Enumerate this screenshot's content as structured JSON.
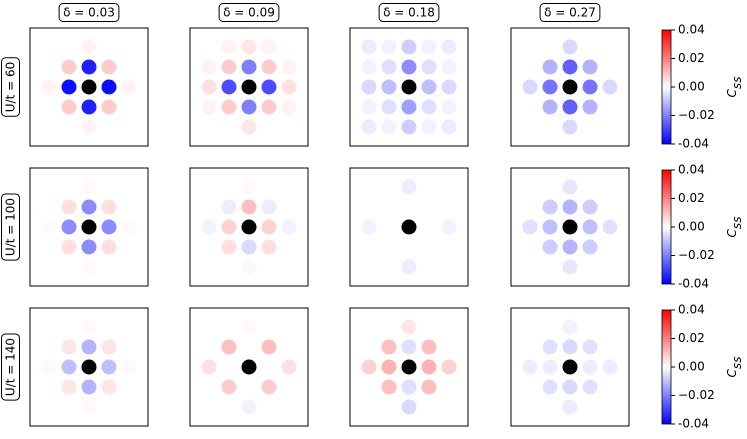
{
  "chart_data": {
    "type": "lattice-heatmap",
    "columns": [
      "δ = 0.03",
      "δ = 0.09",
      "δ = 0.18",
      "δ = 0.27"
    ],
    "rows": [
      "U/t = 60",
      "U/t = 100",
      "U/t = 140"
    ],
    "colorbar_label": {
      "main": "C",
      "sub": "ss"
    },
    "vlim": [
      -0.04,
      0.04
    ],
    "cticks": [
      -0.04,
      {
        "value": -0.02,
        "label": "−0.02"
      },
      {
        "value": 0,
        "label": "0.00"
      },
      0.02,
      0.04
    ],
    "colors": {
      "low": "#0000ff",
      "mid": "#ffffff",
      "high": "#ff0000",
      "reference": "#000000"
    },
    "values": [
      [
        [
          [
            0,
            0,
            0.002,
            0,
            0
          ],
          [
            0,
            0.008,
            -0.035,
            0.008,
            0
          ],
          [
            0.002,
            -0.038,
            null,
            -0.038,
            0.002
          ],
          [
            0,
            0.008,
            -0.035,
            0.008,
            0
          ],
          [
            0,
            0,
            0.002,
            0,
            0
          ]
        ],
        [
          [
            0,
            0.002,
            0.004,
            0.002,
            0
          ],
          [
            0.002,
            0.008,
            -0.02,
            0.008,
            0.002
          ],
          [
            0.005,
            -0.028,
            null,
            -0.028,
            0.005
          ],
          [
            0.002,
            0.008,
            -0.02,
            0.008,
            0.002
          ],
          [
            0,
            0,
            0.004,
            0,
            0
          ]
        ],
        [
          [
            -0.003,
            -0.002,
            -0.008,
            -0.002,
            -0.003
          ],
          [
            -0.002,
            -0.005,
            -0.018,
            -0.005,
            -0.002
          ],
          [
            -0.006,
            -0.01,
            null,
            -0.01,
            -0.006
          ],
          [
            -0.002,
            -0.005,
            -0.015,
            -0.005,
            -0.002
          ],
          [
            -0.003,
            -0.002,
            -0.008,
            -0.002,
            -0.003
          ]
        ],
        [
          [
            0,
            0,
            -0.006,
            0,
            0
          ],
          [
            0,
            -0.012,
            -0.025,
            -0.012,
            0
          ],
          [
            -0.006,
            -0.022,
            null,
            -0.022,
            -0.006
          ],
          [
            0,
            -0.012,
            -0.025,
            -0.012,
            0
          ],
          [
            0,
            0,
            -0.006,
            0,
            0
          ]
        ]
      ],
      [
        [
          [
            0,
            0,
            0.001,
            0,
            0
          ],
          [
            0,
            0.005,
            -0.018,
            0.005,
            0
          ],
          [
            0.001,
            -0.018,
            null,
            -0.018,
            0.001
          ],
          [
            0,
            0.005,
            -0.018,
            0.005,
            0
          ],
          [
            0,
            0,
            0.001,
            0,
            0
          ]
        ],
        [
          [
            0,
            0,
            0.001,
            0,
            0
          ],
          [
            0,
            -0.003,
            0.01,
            -0.003,
            0
          ],
          [
            -0.002,
            0.007,
            null,
            0.007,
            -0.002
          ],
          [
            0,
            0.005,
            -0.006,
            0.005,
            0
          ],
          [
            0,
            0,
            -0.001,
            0,
            0
          ]
        ],
        [
          [
            0,
            0,
            -0.003,
            0,
            0
          ],
          [
            0,
            0,
            0,
            0,
            0
          ],
          [
            -0.002,
            0,
            null,
            0,
            -0.002
          ],
          [
            0,
            0,
            0,
            0,
            0
          ],
          [
            0,
            0,
            -0.003,
            0,
            0
          ]
        ],
        [
          [
            0,
            0,
            -0.004,
            0,
            0
          ],
          [
            0,
            -0.008,
            -0.012,
            -0.008,
            0
          ],
          [
            -0.005,
            -0.01,
            null,
            -0.01,
            -0.005
          ],
          [
            0,
            -0.008,
            -0.012,
            -0.008,
            0
          ],
          [
            0,
            0,
            -0.004,
            0,
            0
          ]
        ]
      ],
      [
        [
          [
            0,
            0,
            0.001,
            0,
            0
          ],
          [
            0,
            0.004,
            -0.012,
            0.004,
            0
          ],
          [
            0.001,
            -0.01,
            null,
            -0.01,
            0.001
          ],
          [
            0,
            0.004,
            -0.012,
            0.004,
            0
          ],
          [
            0,
            0,
            0.001,
            0,
            0
          ]
        ],
        [
          [
            0,
            0,
            0.001,
            0,
            0
          ],
          [
            0,
            0.01,
            0,
            0.01,
            0
          ],
          [
            0.005,
            0,
            null,
            0,
            0.005
          ],
          [
            0,
            0.008,
            0,
            0.008,
            0
          ],
          [
            0,
            0,
            -0.002,
            0,
            0
          ]
        ],
        [
          [
            0,
            0,
            0.004,
            0,
            0
          ],
          [
            0,
            0.01,
            -0.005,
            0.01,
            0
          ],
          [
            0.007,
            0.012,
            null,
            0.012,
            0.007
          ],
          [
            0,
            0.01,
            -0.005,
            0.01,
            0
          ],
          [
            0,
            0,
            -0.006,
            0,
            0
          ]
        ],
        [
          [
            0,
            0,
            -0.002,
            0,
            0
          ],
          [
            0,
            -0.005,
            -0.006,
            -0.005,
            0
          ],
          [
            -0.003,
            -0.003,
            null,
            -0.003,
            -0.003
          ],
          [
            0,
            -0.005,
            -0.006,
            -0.005,
            0
          ],
          [
            0,
            0,
            -0.003,
            0,
            0
          ]
        ]
      ]
    ]
  }
}
